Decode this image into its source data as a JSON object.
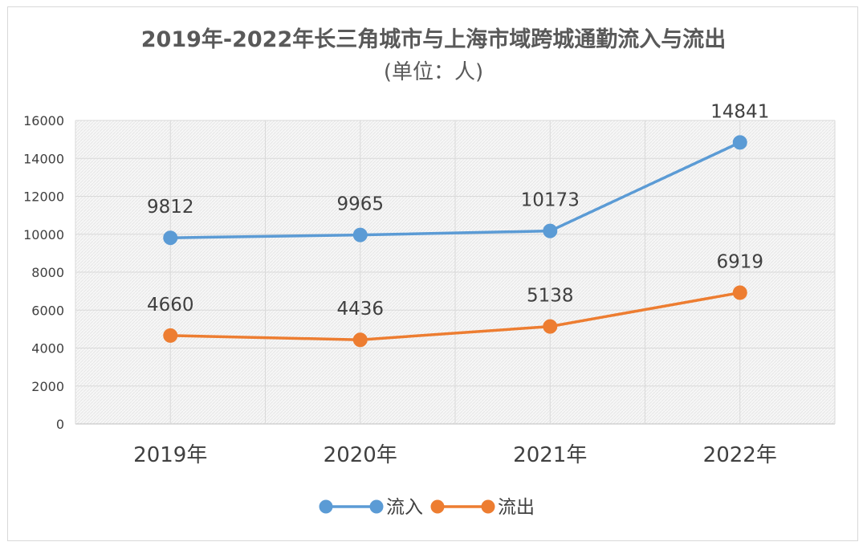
{
  "chart_data": {
    "type": "line",
    "title": "2019年-2022年长三角城市与上海市域跨城通勤流入与流出",
    "subtitle": "(单位：人)",
    "categories": [
      "2019年",
      "2020年",
      "2021年",
      "2022年"
    ],
    "series": [
      {
        "name": "流入",
        "values": [
          9812,
          9965,
          10173,
          14841
        ],
        "color": "#5b9bd5"
      },
      {
        "name": "流出",
        "values": [
          4660,
          4436,
          5138,
          6919
        ],
        "color": "#ed7d31"
      }
    ],
    "ylim": [
      0,
      16000
    ],
    "yticks": [
      "0",
      "2000",
      "4000",
      "6000",
      "8000",
      "10000",
      "12000",
      "14000",
      "16000"
    ],
    "grid": true,
    "legend": "bottom",
    "data_labels": true
  }
}
